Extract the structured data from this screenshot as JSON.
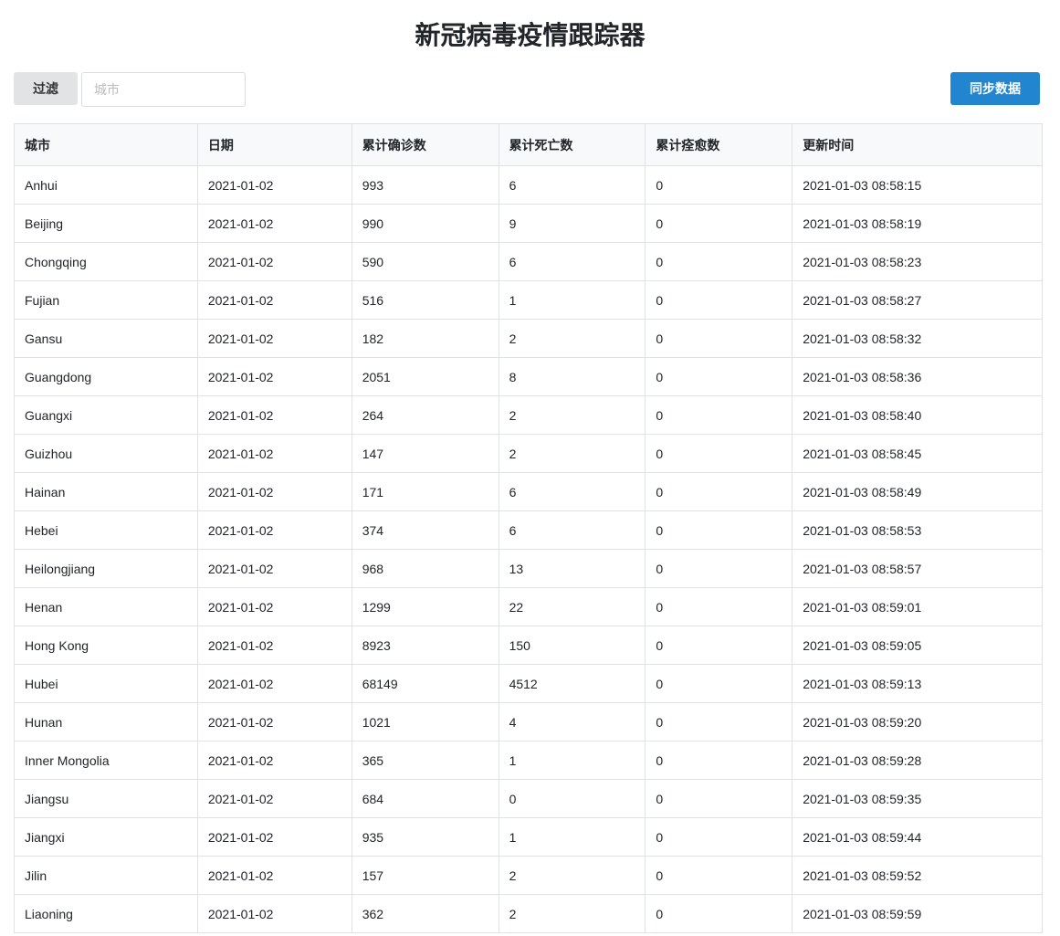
{
  "title": "新冠病毒疫情跟踪器",
  "toolbar": {
    "filter_label": "过滤",
    "city_placeholder": "城市",
    "city_value": "",
    "sync_label": "同步数据"
  },
  "table": {
    "columns": [
      "城市",
      "日期",
      "累计确诊数",
      "累计死亡数",
      "累计痊愈数",
      "更新时间"
    ],
    "rows": [
      [
        "Anhui",
        "2021-01-02",
        "993",
        "6",
        "0",
        "2021-01-03 08:58:15"
      ],
      [
        "Beijing",
        "2021-01-02",
        "990",
        "9",
        "0",
        "2021-01-03 08:58:19"
      ],
      [
        "Chongqing",
        "2021-01-02",
        "590",
        "6",
        "0",
        "2021-01-03 08:58:23"
      ],
      [
        "Fujian",
        "2021-01-02",
        "516",
        "1",
        "0",
        "2021-01-03 08:58:27"
      ],
      [
        "Gansu",
        "2021-01-02",
        "182",
        "2",
        "0",
        "2021-01-03 08:58:32"
      ],
      [
        "Guangdong",
        "2021-01-02",
        "2051",
        "8",
        "0",
        "2021-01-03 08:58:36"
      ],
      [
        "Guangxi",
        "2021-01-02",
        "264",
        "2",
        "0",
        "2021-01-03 08:58:40"
      ],
      [
        "Guizhou",
        "2021-01-02",
        "147",
        "2",
        "0",
        "2021-01-03 08:58:45"
      ],
      [
        "Hainan",
        "2021-01-02",
        "171",
        "6",
        "0",
        "2021-01-03 08:58:49"
      ],
      [
        "Hebei",
        "2021-01-02",
        "374",
        "6",
        "0",
        "2021-01-03 08:58:53"
      ],
      [
        "Heilongjiang",
        "2021-01-02",
        "968",
        "13",
        "0",
        "2021-01-03 08:58:57"
      ],
      [
        "Henan",
        "2021-01-02",
        "1299",
        "22",
        "0",
        "2021-01-03 08:59:01"
      ],
      [
        "Hong Kong",
        "2021-01-02",
        "8923",
        "150",
        "0",
        "2021-01-03 08:59:05"
      ],
      [
        "Hubei",
        "2021-01-02",
        "68149",
        "4512",
        "0",
        "2021-01-03 08:59:13"
      ],
      [
        "Hunan",
        "2021-01-02",
        "1021",
        "4",
        "0",
        "2021-01-03 08:59:20"
      ],
      [
        "Inner Mongolia",
        "2021-01-02",
        "365",
        "1",
        "0",
        "2021-01-03 08:59:28"
      ],
      [
        "Jiangsu",
        "2021-01-02",
        "684",
        "0",
        "0",
        "2021-01-03 08:59:35"
      ],
      [
        "Jiangxi",
        "2021-01-02",
        "935",
        "1",
        "0",
        "2021-01-03 08:59:44"
      ],
      [
        "Jilin",
        "2021-01-02",
        "157",
        "2",
        "0",
        "2021-01-03 08:59:52"
      ],
      [
        "Liaoning",
        "2021-01-02",
        "362",
        "2",
        "0",
        "2021-01-03 08:59:59"
      ]
    ]
  }
}
